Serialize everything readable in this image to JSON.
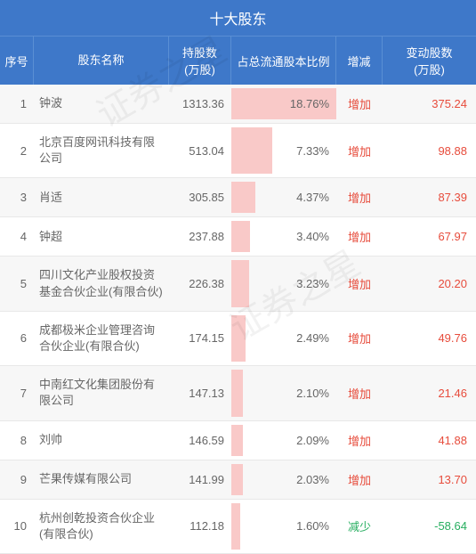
{
  "title": "十大股东",
  "watermark": "证券之星",
  "columns": {
    "idx": "序号",
    "name": "股东名称",
    "shares": "持股数\n(万股)",
    "ratio": "占总流通股本比例",
    "change": "增减",
    "delta": "变动股数\n(万股)"
  },
  "max_ratio": 18.76,
  "rows": [
    {
      "idx": "1",
      "name": "钟波",
      "shares": "1313.36",
      "ratio": "18.76%",
      "ratio_val": 18.76,
      "change": "增加",
      "change_type": "increase",
      "delta": "375.24"
    },
    {
      "idx": "2",
      "name": "北京百度网讯科技有限公司",
      "shares": "513.04",
      "ratio": "7.33%",
      "ratio_val": 7.33,
      "change": "增加",
      "change_type": "increase",
      "delta": "98.88"
    },
    {
      "idx": "3",
      "name": "肖适",
      "shares": "305.85",
      "ratio": "4.37%",
      "ratio_val": 4.37,
      "change": "增加",
      "change_type": "increase",
      "delta": "87.39"
    },
    {
      "idx": "4",
      "name": "钟超",
      "shares": "237.88",
      "ratio": "3.40%",
      "ratio_val": 3.4,
      "change": "增加",
      "change_type": "increase",
      "delta": "67.97"
    },
    {
      "idx": "5",
      "name": "四川文化产业股权投资基金合伙企业(有限合伙)",
      "shares": "226.38",
      "ratio": "3.23%",
      "ratio_val": 3.23,
      "change": "增加",
      "change_type": "increase",
      "delta": "20.20"
    },
    {
      "idx": "6",
      "name": "成都极米企业管理咨询合伙企业(有限合伙)",
      "shares": "174.15",
      "ratio": "2.49%",
      "ratio_val": 2.49,
      "change": "增加",
      "change_type": "increase",
      "delta": "49.76"
    },
    {
      "idx": "7",
      "name": "中南红文化集团股份有限公司",
      "shares": "147.13",
      "ratio": "2.10%",
      "ratio_val": 2.1,
      "change": "增加",
      "change_type": "increase",
      "delta": "21.46"
    },
    {
      "idx": "8",
      "name": "刘帅",
      "shares": "146.59",
      "ratio": "2.09%",
      "ratio_val": 2.09,
      "change": "增加",
      "change_type": "increase",
      "delta": "41.88"
    },
    {
      "idx": "9",
      "name": "芒果传媒有限公司",
      "shares": "141.99",
      "ratio": "2.03%",
      "ratio_val": 2.03,
      "change": "增加",
      "change_type": "increase",
      "delta": "13.70"
    },
    {
      "idx": "10",
      "name": "杭州创乾投资合伙企业(有限合伙)",
      "shares": "112.18",
      "ratio": "1.60%",
      "ratio_val": 1.6,
      "change": "减少",
      "change_type": "decrease",
      "delta": "-58.64"
    }
  ],
  "colors": {
    "header_bg": "#3e78c9",
    "header_text": "#ffffff",
    "row_odd_bg": "#f7f7f7",
    "row_even_bg": "#ffffff",
    "text": "#666666",
    "increase": "#e74c3c",
    "decrease": "#27ae60",
    "bar": "#f9c9c8",
    "border": "#e8e8e8"
  }
}
